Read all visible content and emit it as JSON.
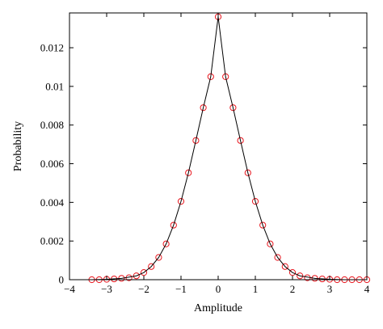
{
  "chart_data": {
    "type": "scatter",
    "xlabel": "Amplitude",
    "ylabel": "Probability",
    "xlim": [
      -4,
      4
    ],
    "ylim": [
      0,
      0.0138
    ],
    "xticks": [
      -4,
      -3,
      -2,
      -1,
      0,
      1,
      2,
      3,
      4
    ],
    "xtick_labels": [
      "−4",
      "−3",
      "−2",
      "−1",
      "0",
      "1",
      "2",
      "3",
      "4"
    ],
    "yticks": [
      0,
      0.002,
      0.004,
      0.006,
      0.008,
      0.01,
      0.012
    ],
    "ytick_labels": [
      "0",
      "0.002",
      "0.004",
      "0.006",
      "0.008",
      "0.01",
      "0.012"
    ],
    "grid": false,
    "series": [
      {
        "style": "circles",
        "color": "#e8141c",
        "x": [
          -3.4,
          -3.2,
          -3.0,
          -2.8,
          -2.6,
          -2.4,
          -2.2,
          -2.0,
          -1.8,
          -1.6,
          -1.4,
          -1.2,
          -1.0,
          -0.8,
          -0.6,
          -0.4,
          -0.2,
          0.0,
          0.2,
          0.4,
          0.6,
          0.8,
          1.0,
          1.2,
          1.4,
          1.6,
          1.8,
          2.0,
          2.2,
          2.4,
          2.6,
          2.8,
          3.0,
          3.2,
          3.4,
          3.6,
          3.8,
          4.0
        ],
        "y": [
          0.0,
          0.0,
          2e-05,
          4e-05,
          7e-05,
          0.0001,
          0.0002,
          0.00037,
          0.00068,
          0.00115,
          0.00185,
          0.00282,
          0.00405,
          0.00553,
          0.0072,
          0.0089,
          0.0105,
          0.0136,
          0.0105,
          0.0089,
          0.0072,
          0.00553,
          0.00405,
          0.00282,
          0.00185,
          0.00115,
          0.00068,
          0.00037,
          0.0002,
          0.0001,
          7e-05,
          4e-05,
          2e-05,
          0.0,
          0.0,
          0.0,
          0.0,
          0.0
        ]
      },
      {
        "style": "line",
        "color": "#000000",
        "x": [
          -3.4,
          -3.0,
          -2.6,
          -2.2,
          -2.0,
          -1.8,
          -1.6,
          -1.4,
          -1.2,
          -1.0,
          -0.8,
          -0.6,
          -0.4,
          -0.2,
          0.0,
          0.2,
          0.4,
          0.6,
          0.8,
          1.0,
          1.2,
          1.4,
          1.6,
          1.8,
          2.0,
          2.2,
          2.6,
          3.0,
          3.4,
          4.0
        ],
        "y": [
          0.0,
          2e-05,
          7e-05,
          0.0002,
          0.00037,
          0.00068,
          0.00115,
          0.00185,
          0.00282,
          0.00405,
          0.00553,
          0.0072,
          0.0089,
          0.0105,
          0.0136,
          0.0105,
          0.0089,
          0.0072,
          0.00553,
          0.00405,
          0.00282,
          0.00185,
          0.00115,
          0.00068,
          0.00037,
          0.0002,
          7e-05,
          2e-05,
          0.0,
          0.0
        ]
      }
    ]
  }
}
